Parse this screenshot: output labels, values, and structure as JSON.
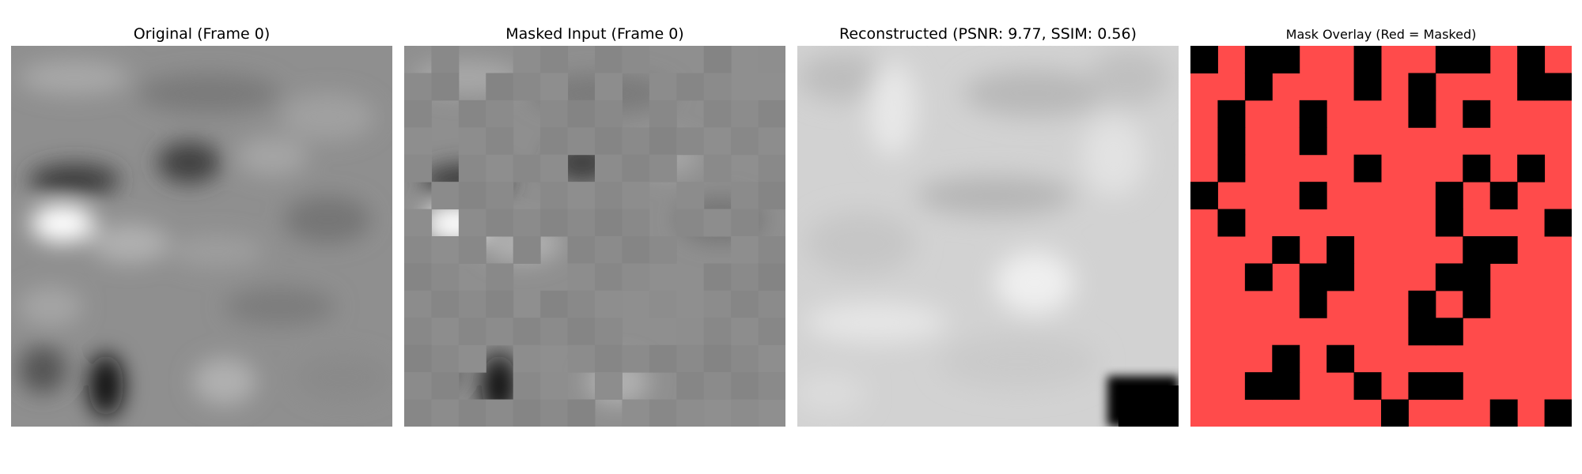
{
  "figure": {
    "panels": [
      {
        "title": "Original (Frame 0)",
        "content": "grayscale-blurred-frame"
      },
      {
        "title": "Masked Input (Frame 0)",
        "content": "grayscale-frame-with-masked-patches"
      },
      {
        "title": "Reconstructed (PSNR: 9.77, SSIM: 0.56)",
        "content": "light-grayscale-reconstruction"
      },
      {
        "title": "Mask Overlay (Red = Masked)",
        "content": "red-black-mask-grid"
      }
    ]
  },
  "colors": {
    "mask_red": "#ff4b4b",
    "unmasked": "#000000",
    "patch_gray": "#8c8c8c"
  }
}
